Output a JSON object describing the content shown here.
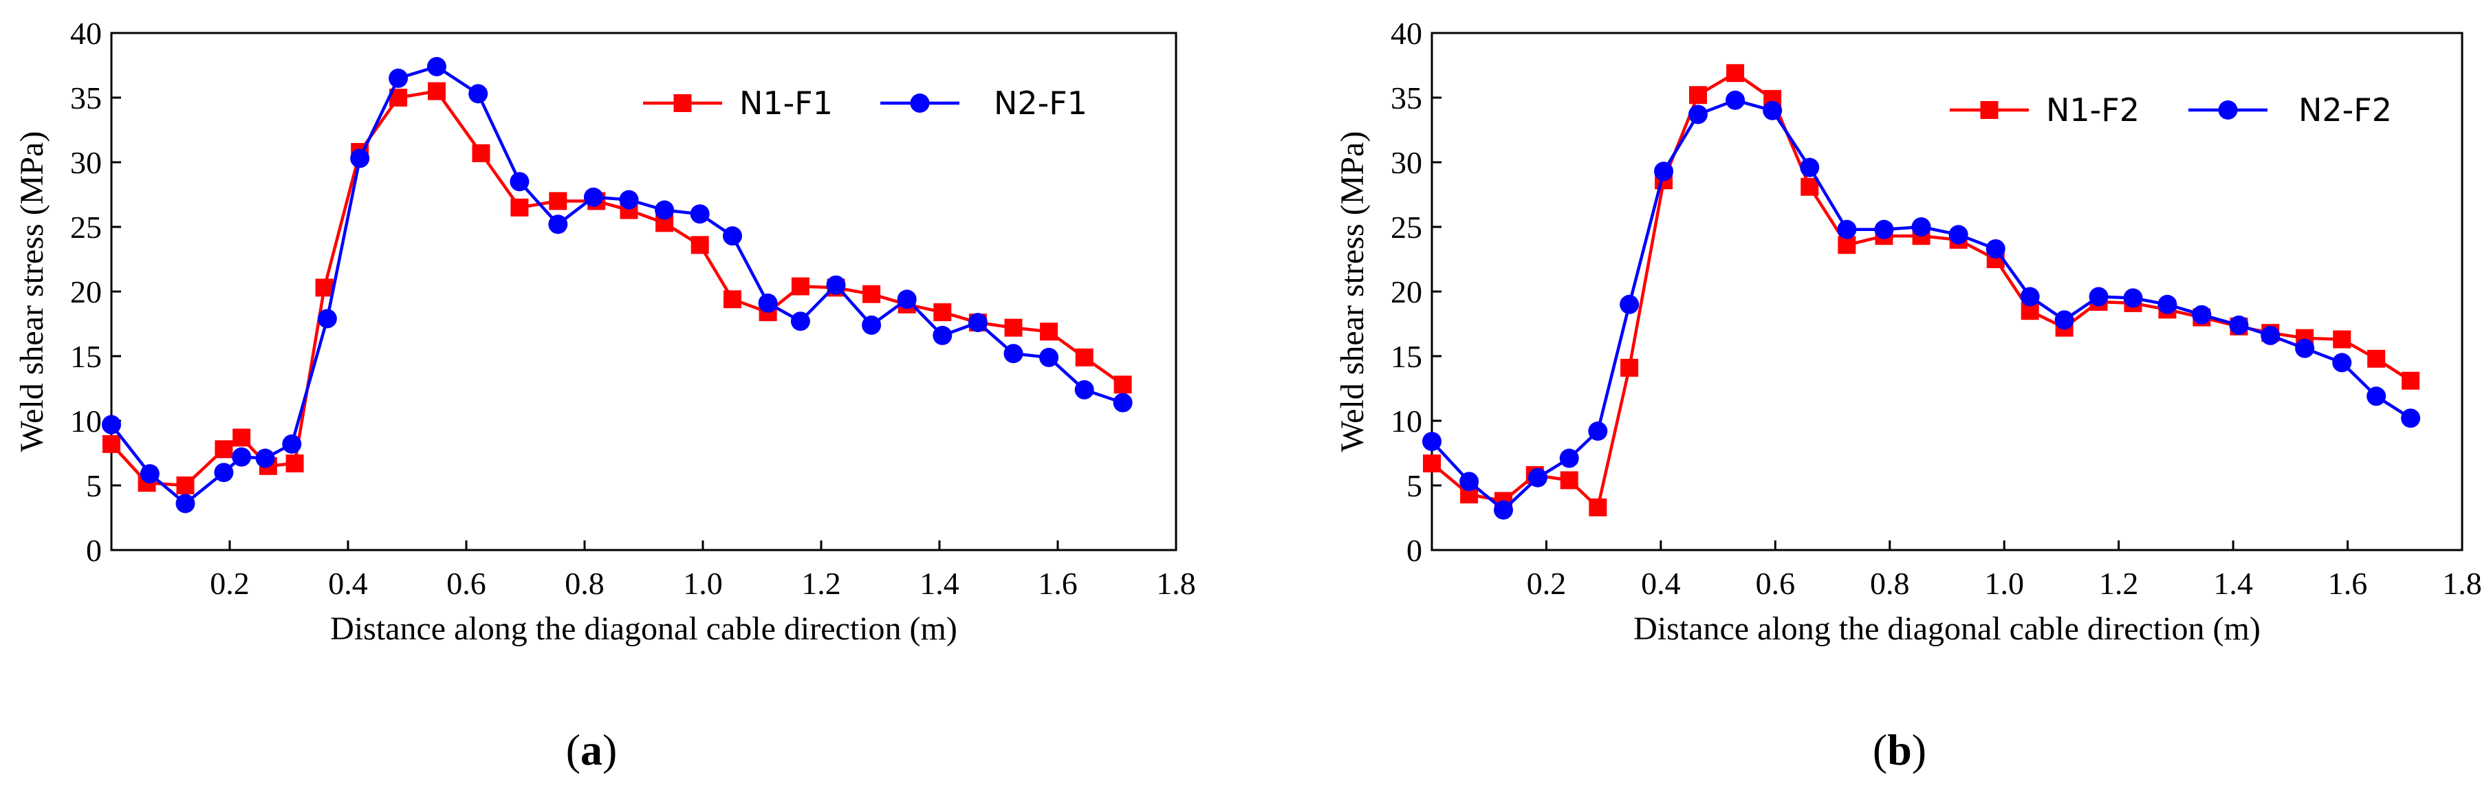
{
  "chart_data": [
    {
      "type": "line",
      "panel_label": "a",
      "caption_open": "(",
      "caption_close": ")",
      "xlabel": "Distance along the diagonal cable direction (m)",
      "ylabel": "Weld shear stress (MPa)",
      "xlim": [
        0,
        1.8
      ],
      "ylim": [
        0,
        40
      ],
      "x_ticks": [
        0.2,
        0.4,
        0.6,
        0.8,
        1.0,
        1.2,
        1.4,
        1.6,
        1.8
      ],
      "x_tick_labels": [
        "0.2",
        "0.4",
        "0.6",
        "0.8",
        "1.0",
        "1.2",
        "1.4",
        "1.6",
        "1.8"
      ],
      "y_ticks": [
        0,
        5,
        10,
        15,
        20,
        25,
        30,
        35,
        40
      ],
      "y_tick_labels": [
        "0",
        "5",
        "10",
        "15",
        "20",
        "25",
        "30",
        "35",
        "40"
      ],
      "legend_position": "top-right",
      "series": [
        {
          "name": "N1-F1",
          "color": "#ff0000",
          "marker": "square",
          "x": [
            0.0,
            0.06,
            0.125,
            0.19,
            0.22,
            0.265,
            0.31,
            0.36,
            0.42,
            0.485,
            0.55,
            0.625,
            0.69,
            0.755,
            0.82,
            0.875,
            0.935,
            0.995,
            1.05,
            1.11,
            1.165,
            1.225,
            1.285,
            1.345,
            1.405,
            1.465,
            1.525,
            1.585,
            1.645,
            1.71
          ],
          "y": [
            8.2,
            5.2,
            5.0,
            7.8,
            8.7,
            6.5,
            6.7,
            20.3,
            30.8,
            35.0,
            35.5,
            30.7,
            26.5,
            27.0,
            27.0,
            26.3,
            25.3,
            23.6,
            19.4,
            18.4,
            20.4,
            20.3,
            19.8,
            19.0,
            18.4,
            17.6,
            17.2,
            16.9,
            14.9,
            12.8
          ]
        },
        {
          "name": "N2-F1",
          "color": "#0000ff",
          "marker": "circle",
          "x": [
            0.0,
            0.065,
            0.125,
            0.19,
            0.22,
            0.26,
            0.305,
            0.365,
            0.42,
            0.485,
            0.55,
            0.62,
            0.69,
            0.755,
            0.815,
            0.875,
            0.935,
            0.995,
            1.05,
            1.11,
            1.165,
            1.225,
            1.285,
            1.345,
            1.405,
            1.465,
            1.525,
            1.585,
            1.645,
            1.71
          ],
          "y": [
            9.7,
            5.9,
            3.6,
            6.0,
            7.2,
            7.1,
            8.2,
            17.9,
            30.3,
            36.5,
            37.4,
            35.3,
            28.5,
            25.2,
            27.3,
            27.1,
            26.3,
            26.0,
            24.3,
            19.1,
            17.7,
            20.5,
            17.4,
            19.4,
            16.6,
            17.6,
            15.2,
            14.9,
            12.4,
            11.4
          ]
        }
      ]
    },
    {
      "type": "line",
      "panel_label": "b",
      "caption_open": "(",
      "caption_close": ")",
      "xlabel": "Distance along the diagonal cable direction (m)",
      "ylabel": "Weld shear stress (MPa)",
      "xlim": [
        0,
        1.8
      ],
      "ylim": [
        0,
        40
      ],
      "x_ticks": [
        0.2,
        0.4,
        0.6,
        0.8,
        1.0,
        1.2,
        1.4,
        1.6,
        1.8
      ],
      "x_tick_labels": [
        "0.2",
        "0.4",
        "0.6",
        "0.8",
        "1.0",
        "1.2",
        "1.4",
        "1.6",
        "1.8"
      ],
      "y_ticks": [
        0,
        5,
        10,
        15,
        20,
        25,
        30,
        35,
        40
      ],
      "y_tick_labels": [
        "0",
        "5",
        "10",
        "15",
        "20",
        "25",
        "30",
        "35",
        "40"
      ],
      "legend_position": "top-right",
      "series": [
        {
          "name": "N1-F2",
          "color": "#ff0000",
          "marker": "square",
          "x": [
            0.0,
            0.065,
            0.125,
            0.18,
            0.24,
            0.29,
            0.345,
            0.405,
            0.465,
            0.53,
            0.595,
            0.66,
            0.725,
            0.79,
            0.855,
            0.92,
            0.985,
            1.045,
            1.105,
            1.165,
            1.225,
            1.285,
            1.345,
            1.41,
            1.465,
            1.525,
            1.59,
            1.65,
            1.71
          ],
          "y": [
            6.7,
            4.3,
            3.8,
            5.8,
            5.4,
            3.3,
            14.1,
            28.6,
            35.2,
            36.9,
            34.9,
            28.1,
            23.6,
            24.3,
            24.3,
            24.0,
            22.5,
            18.5,
            17.2,
            19.2,
            19.1,
            18.6,
            18.0,
            17.3,
            16.8,
            16.4,
            16.3,
            14.8,
            13.1
          ]
        },
        {
          "name": "N2-F2",
          "color": "#0000ff",
          "marker": "circle",
          "x": [
            0.0,
            0.065,
            0.125,
            0.185,
            0.24,
            0.29,
            0.345,
            0.405,
            0.465,
            0.53,
            0.595,
            0.66,
            0.725,
            0.79,
            0.855,
            0.92,
            0.985,
            1.045,
            1.105,
            1.165,
            1.225,
            1.285,
            1.345,
            1.41,
            1.465,
            1.525,
            1.59,
            1.65,
            1.71
          ],
          "y": [
            8.4,
            5.3,
            3.1,
            5.6,
            7.1,
            9.2,
            19.0,
            29.3,
            33.7,
            34.8,
            34.0,
            29.6,
            24.8,
            24.8,
            25.0,
            24.4,
            23.3,
            19.6,
            17.8,
            19.6,
            19.5,
            19.0,
            18.2,
            17.4,
            16.6,
            15.6,
            14.5,
            11.9,
            10.2
          ]
        }
      ]
    }
  ]
}
